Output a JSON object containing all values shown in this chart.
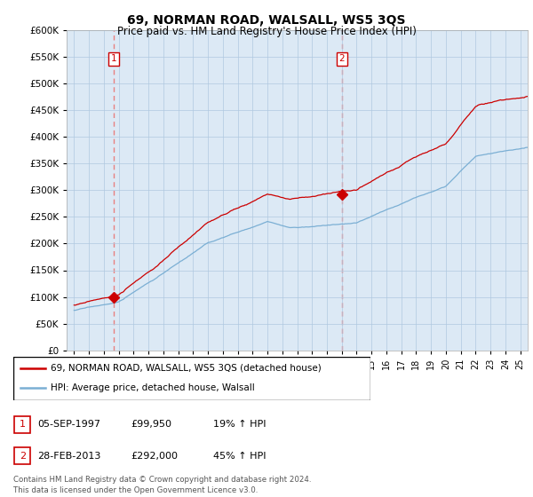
{
  "title": "69, NORMAN ROAD, WALSALL, WS5 3QS",
  "subtitle": "Price paid vs. HM Land Registry's House Price Index (HPI)",
  "legend_line1": "69, NORMAN ROAD, WALSALL, WS5 3QS (detached house)",
  "legend_line2": "HPI: Average price, detached house, Walsall",
  "sale1_date": "05-SEP-1997",
  "sale1_price": 99950,
  "sale1_hpi": "19% ↑ HPI",
  "sale2_date": "28-FEB-2013",
  "sale2_price": 292000,
  "sale2_hpi": "45% ↑ HPI",
  "footer": "Contains HM Land Registry data © Crown copyright and database right 2024.\nThis data is licensed under the Open Government Licence v3.0.",
  "ylim": [
    0,
    600000
  ],
  "yticks": [
    0,
    50000,
    100000,
    150000,
    200000,
    250000,
    300000,
    350000,
    400000,
    450000,
    500000,
    550000,
    600000
  ],
  "red_color": "#cc0000",
  "blue_color": "#7bafd4",
  "vline_color": "#e88080",
  "background_color": "#ffffff",
  "plot_bg_color": "#dce9f5",
  "grid_color": "#b0c8e0"
}
